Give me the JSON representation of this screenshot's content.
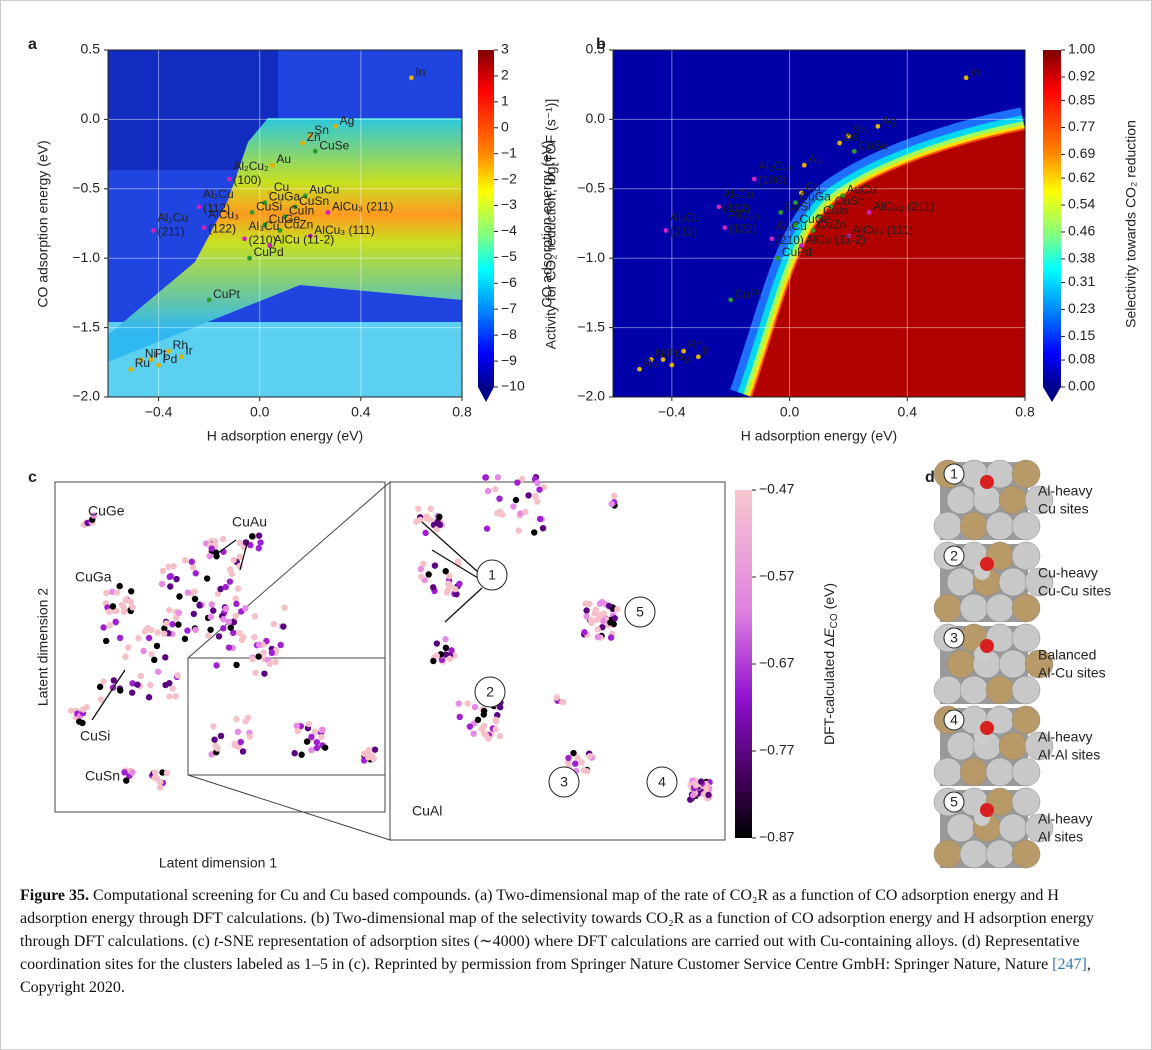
{
  "panel_a": {
    "letter": "a",
    "xlabel": "H adsorption energy (eV)",
    "ylabel": "CO adsorption energy (eV)",
    "colorbar_label": "Activity for CO₂ reduction, log[TOF (s⁻¹)]",
    "colorbar_ticks": [
      3,
      2,
      1,
      0,
      {
        "value": -1,
        "label": "−1"
      },
      {
        "value": -2,
        "label": "−2"
      },
      {
        "value": -3,
        "label": "−3"
      },
      {
        "value": -4,
        "label": "−4"
      },
      {
        "value": -5,
        "label": "−5"
      },
      {
        "value": -6,
        "label": "−6"
      },
      {
        "value": -7,
        "label": "−7"
      },
      {
        "value": -8,
        "label": "−8"
      },
      {
        "value": -9,
        "label": "−9"
      },
      {
        "value": -10,
        "label": "−10"
      }
    ]
  },
  "panel_b": {
    "letter": "b",
    "xlabel": "H adsorption energy (eV)",
    "ylabel": "CO adsorption energy (eV)",
    "colorbar_label": "Selectivity towards CO₂ reduction",
    "colorbar_ticks": [
      {
        "value": 1,
        "label": "1.00"
      },
      0.92,
      0.85,
      0.77,
      0.69,
      0.62,
      0.54,
      0.46,
      0.38,
      0.31,
      0.23,
      0.15,
      0.08,
      {
        "value": 0,
        "label": "0.00"
      }
    ]
  },
  "energy_axes": {
    "xlim": [
      -0.6,
      0.8
    ],
    "ylim": [
      -2.0,
      0.5
    ],
    "xticks": [
      {
        "value": -0.4,
        "label": "−0.4"
      },
      {
        "value": 0,
        "label": "0.0"
      },
      0.4,
      0.8
    ],
    "yticks": [
      0.5,
      {
        "value": 0,
        "label": "0.0"
      },
      {
        "value": -0.5,
        "label": "−0.5"
      },
      {
        "value": -1,
        "label": "−1.0"
      },
      {
        "value": -1.5,
        "label": "−1.5"
      },
      {
        "value": -2,
        "label": "−2.0"
      }
    ]
  },
  "points": [
    {
      "label": [
        "In"
      ],
      "h": 0.6,
      "co": 0.3,
      "color": "#e0b000"
    },
    {
      "label": [
        "Ag"
      ],
      "h": 0.3,
      "co": -0.05,
      "color": "#e0b000"
    },
    {
      "label": [
        "Sn"
      ],
      "h": 0.2,
      "co": -0.12,
      "color": "#e0b000"
    },
    {
      "label": [
        "Zn"
      ],
      "h": 0.17,
      "co": -0.17,
      "color": "#e0b000"
    },
    {
      "label": [
        "CuSe"
      ],
      "h": 0.22,
      "co": -0.23,
      "color": "#2a9a2a"
    },
    {
      "label": [
        "Au"
      ],
      "h": 0.05,
      "co": -0.33,
      "color": "#e0b000"
    },
    {
      "label": [
        "Al₂Cu₂",
        "(100)"
      ],
      "h": -0.12,
      "co": -0.43,
      "color": "#d020c0"
    },
    {
      "label": [
        "Cu"
      ],
      "h": 0.04,
      "co": -0.53,
      "color": "#e0b000"
    },
    {
      "label": [
        "AuCu"
      ],
      "h": 0.18,
      "co": -0.55,
      "color": "#2a9a2a"
    },
    {
      "label": [
        "CuGa"
      ],
      "h": 0.02,
      "co": -0.6,
      "color": "#2a9a2a"
    },
    {
      "label": [
        "CuSn"
      ],
      "h": 0.14,
      "co": -0.63,
      "color": "#2a9a2a"
    },
    {
      "label": [
        "CuSi"
      ],
      "h": -0.03,
      "co": -0.67,
      "color": "#2a9a2a"
    },
    {
      "label": [
        "CuIn"
      ],
      "h": 0.1,
      "co": -0.7,
      "color": "#2a9a2a"
    },
    {
      "label": [
        "AlCu₃ (211)"
      ],
      "h": 0.27,
      "co": -0.67,
      "color": "#d020c0"
    },
    {
      "label": [
        "CuGe"
      ],
      "h": 0.02,
      "co": -0.76,
      "color": "#2a9a2a"
    },
    {
      "label": [
        "CuZn"
      ],
      "h": 0.08,
      "co": -0.8,
      "color": "#2a9a2a"
    },
    {
      "label": [
        "AlCu₃ (111)"
      ],
      "h": 0.2,
      "co": -0.84,
      "color": "#d020c0"
    },
    {
      "label": [
        "Al₂Cu",
        "(112)"
      ],
      "h": -0.24,
      "co": -0.63,
      "color": "#d020c0"
    },
    {
      "label": [
        "Al₂Cu",
        "(211)"
      ],
      "h": -0.42,
      "co": -0.8,
      "color": "#d020c0"
    },
    {
      "label": [
        "AlCu₃",
        "(122)"
      ],
      "h": -0.22,
      "co": -0.78,
      "color": "#d020c0"
    },
    {
      "label": [
        "Al₃Cu",
        "(210)"
      ],
      "h": -0.06,
      "co": -0.86,
      "color": "#d020c0"
    },
    {
      "label": [
        "AlCu (11-2)"
      ],
      "h": 0.04,
      "co": -0.91,
      "color": "#d020c0"
    },
    {
      "label": [
        "CuPd"
      ],
      "h": -0.04,
      "co": -1.0,
      "color": "#2a9a2a"
    },
    {
      "label": [
        "CuPt"
      ],
      "h": -0.2,
      "co": -1.3,
      "color": "#2a9a2a"
    },
    {
      "label": [
        "Rh"
      ],
      "h": -0.36,
      "co": -1.67,
      "color": "#e0b000"
    },
    {
      "label": [
        "Pt"
      ],
      "h": -0.43,
      "co": -1.73,
      "color": "#e0b000"
    },
    {
      "label": [
        "Ir"
      ],
      "h": -0.31,
      "co": -1.71,
      "color": "#e0b000"
    },
    {
      "label": [
        "Ni"
      ],
      "h": -0.47,
      "co": -1.73,
      "color": "#e0b000"
    },
    {
      "label": [
        "Pd"
      ],
      "h": -0.4,
      "co": -1.77,
      "color": "#e0b000"
    },
    {
      "label": [
        "Ru"
      ],
      "h": -0.51,
      "co": -1.8,
      "color": "#e0b000"
    }
  ],
  "panel_c": {
    "letter": "c",
    "labels": [
      "CuGe",
      "CuAu",
      "CuGa",
      "CuSi",
      "CuSn",
      "CuAl"
    ],
    "xlabel": "Latent dimension 1",
    "ylabel": "Latent dimension 2",
    "clusters": [
      "1",
      "2",
      "3",
      "4",
      "5"
    ],
    "colorbar_label": {
      "pre": "DFT-calculated Δ",
      "var": "E",
      "sub": "CO",
      "post": " (eV)"
    },
    "colorbar_ticks": [
      {
        "value": -0.47,
        "label": "−0.47"
      },
      {
        "value": -0.57,
        "label": "−0.57"
      },
      {
        "value": -0.67,
        "label": "−0.67"
      },
      {
        "value": -0.77,
        "label": "−0.77"
      },
      {
        "value": -0.87,
        "label": "−0.87"
      }
    ]
  },
  "panel_d": {
    "letter": "d",
    "items": [
      {
        "number": "1",
        "lines": [
          "Al-heavy",
          "Cu sites"
        ],
        "color": "#7a2a9a"
      },
      {
        "number": "2",
        "lines": [
          "Cu-heavy",
          "Cu-Cu sites"
        ],
        "color": "#a020c0"
      },
      {
        "number": "3",
        "lines": [
          "Balanced",
          "Al-Cu sites"
        ],
        "color": "#b030d0"
      },
      {
        "number": "4",
        "lines": [
          "Al-heavy",
          "Al-Al sites"
        ],
        "color": "#d070d8"
      },
      {
        "number": "5",
        "lines": [
          "Al-heavy",
          "Al sites"
        ],
        "color": "#d88ae0"
      }
    ]
  },
  "caption": {
    "label": "Figure 35.",
    "text_1": " Computational screening for Cu and Cu based compounds. (a) Two-dimensional map of the rate of CO₂R as a function of CO adsorption energy and H adsorption energy through DFT calculations. (b) Two-dimensional map of the selectivity towards CO₂R as a function of CO adsorption energy and H adsorption energy through DFT calculations. (c) ",
    "italic": "t",
    "text_2": "-SNE representation of adsorption sites (∼4000) where DFT calculations are carried out with Cu-containing alloys. (d) Representative coordination sites for the clusters labeled as 1–5 in (c). Reprinted by permission from Springer Nature Customer Service Centre GmbH: Springer Nature, Nature ",
    "ref": "[247]",
    "text_3": ", Copyright 2020."
  }
}
